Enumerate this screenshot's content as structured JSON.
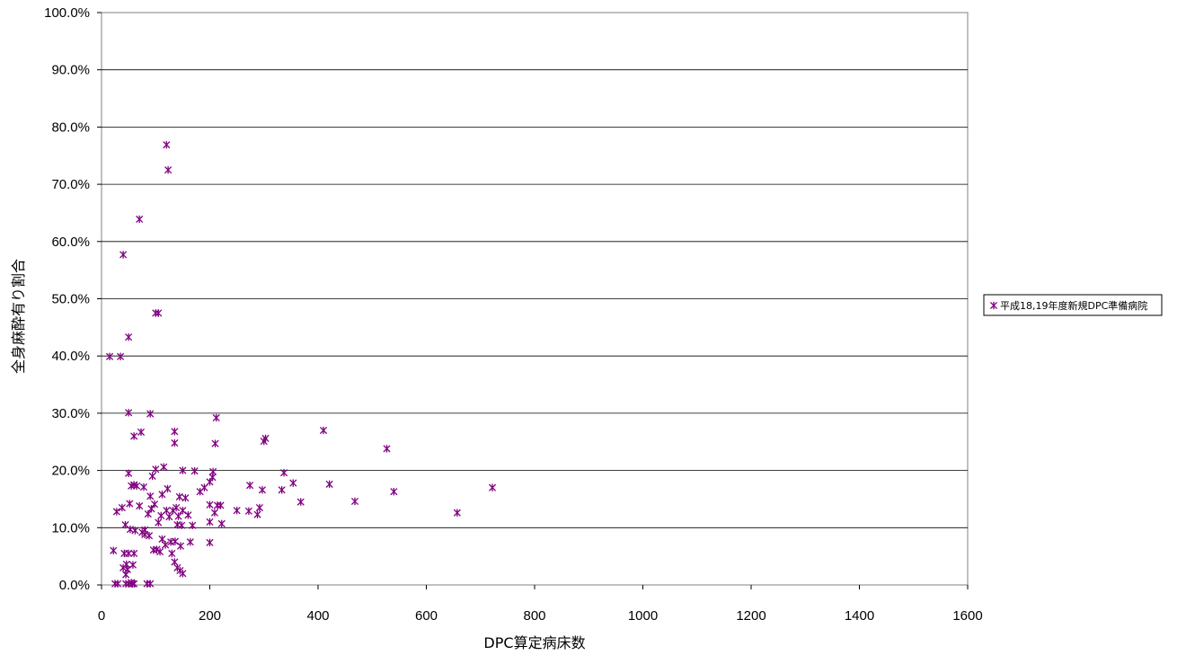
{
  "chart_data": {
    "type": "scatter",
    "title": "",
    "xlabel": "DPC算定病床数",
    "ylabel": "全身麻酔有り割合",
    "xlim": [
      0,
      1600
    ],
    "ylim": [
      0,
      100
    ],
    "x_ticks": [
      0,
      200,
      400,
      600,
      800,
      1000,
      1200,
      1400,
      1600
    ],
    "x_tick_labels": [
      "0",
      "200",
      "400",
      "600",
      "800",
      "1000",
      "1200",
      "1400",
      "1600"
    ],
    "y_ticks": [
      0,
      10,
      20,
      30,
      40,
      50,
      60,
      70,
      80,
      90,
      100
    ],
    "y_tick_labels": [
      "0.0%",
      "10.0%",
      "20.0%",
      "30.0%",
      "40.0%",
      "50.0%",
      "60.0%",
      "70.0%",
      "80.0%",
      "90.0%",
      "100.0%"
    ],
    "grid": "horizontal",
    "legend_position": "right",
    "marker": "asterisk",
    "series": [
      {
        "name": "平成18,19年度新規DPC準備病院",
        "color": "#800080",
        "points": [
          [
            15,
            39.9
          ],
          [
            35,
            39.9
          ],
          [
            40,
            57.7
          ],
          [
            50,
            43.3
          ],
          [
            70,
            63.9
          ],
          [
            100,
            47.5
          ],
          [
            105,
            47.5
          ],
          [
            120,
            76.9
          ],
          [
            123,
            72.5
          ],
          [
            50,
            30.1
          ],
          [
            90,
            29.9
          ],
          [
            60,
            26.0
          ],
          [
            73,
            26.7
          ],
          [
            135,
            26.8
          ],
          [
            135,
            24.8
          ],
          [
            212,
            29.2
          ],
          [
            210,
            24.7
          ],
          [
            300,
            25.1
          ],
          [
            303,
            25.6
          ],
          [
            410,
            27.0
          ],
          [
            527,
            23.8
          ],
          [
            540,
            16.3
          ],
          [
            657,
            12.6
          ],
          [
            722,
            17.0
          ],
          [
            468,
            14.6
          ],
          [
            421,
            17.6
          ],
          [
            368,
            14.5
          ],
          [
            354,
            17.8
          ],
          [
            337,
            19.6
          ],
          [
            333,
            16.6
          ],
          [
            297,
            16.6
          ],
          [
            292,
            13.5
          ],
          [
            288,
            12.3
          ],
          [
            274,
            17.4
          ],
          [
            272,
            12.9
          ],
          [
            250,
            13.0
          ],
          [
            222,
            10.7
          ],
          [
            220,
            13.9
          ],
          [
            214,
            13.9
          ],
          [
            209,
            12.6
          ],
          [
            206,
            19.8
          ],
          [
            200,
            18.0
          ],
          [
            200,
            14.0
          ],
          [
            200,
            11.0
          ],
          [
            200,
            7.4
          ],
          [
            190,
            17.0
          ],
          [
            182,
            16.3
          ],
          [
            172,
            19.9
          ],
          [
            168,
            10.4
          ],
          [
            164,
            7.5
          ],
          [
            155,
            15.2
          ],
          [
            150,
            20.0
          ],
          [
            150,
            13.0
          ],
          [
            148,
            10.4
          ],
          [
            146,
            6.8
          ],
          [
            144,
            15.4
          ],
          [
            142,
            12.0
          ],
          [
            140,
            10.5
          ],
          [
            138,
            13.5
          ],
          [
            136,
            7.6
          ],
          [
            135,
            4.0
          ],
          [
            140,
            3.0
          ],
          [
            145,
            2.5
          ],
          [
            150,
            2.0
          ],
          [
            130,
            5.5
          ],
          [
            128,
            7.5
          ],
          [
            125,
            11.9
          ],
          [
            122,
            16.8
          ],
          [
            120,
            13.0
          ],
          [
            118,
            7.0
          ],
          [
            115,
            20.6
          ],
          [
            112,
            15.8
          ],
          [
            110,
            12.1
          ],
          [
            105,
            10.9
          ],
          [
            102,
            6.2
          ],
          [
            100,
            20.2
          ],
          [
            98,
            14.1
          ],
          [
            96,
            6.1
          ],
          [
            94,
            19.0
          ],
          [
            92,
            13.3
          ],
          [
            90,
            15.5
          ],
          [
            88,
            8.6
          ],
          [
            86,
            12.4
          ],
          [
            84,
            0.2
          ],
          [
            90,
            0.2
          ],
          [
            80,
            9.6
          ],
          [
            78,
            17.1
          ],
          [
            75,
            9.2
          ],
          [
            70,
            13.8
          ],
          [
            65,
            17.3
          ],
          [
            60,
            17.5
          ],
          [
            60,
            5.5
          ],
          [
            58,
            3.5
          ],
          [
            55,
            17.3
          ],
          [
            53,
            9.7
          ],
          [
            52,
            14.2
          ],
          [
            50,
            19.5
          ],
          [
            50,
            5.5
          ],
          [
            48,
            2.7
          ],
          [
            46,
            3.6
          ],
          [
            45,
            1.8
          ],
          [
            44,
            10.5
          ],
          [
            42,
            5.5
          ],
          [
            40,
            3.0
          ],
          [
            55,
            0.4
          ],
          [
            50,
            0.2
          ],
          [
            45,
            0.2
          ],
          [
            60,
            0.2
          ],
          [
            57,
            0.2
          ],
          [
            30,
            0.2
          ],
          [
            25,
            0.2
          ],
          [
            28,
            12.8
          ],
          [
            22,
            6.0
          ],
          [
            38,
            13.5
          ],
          [
            62,
            9.5
          ],
          [
            80,
            8.8
          ],
          [
            108,
            5.8
          ],
          [
            132,
            13.0
          ],
          [
            160,
            12.2
          ],
          [
            205,
            18.8
          ],
          [
            112,
            8.0
          ]
        ]
      }
    ]
  }
}
